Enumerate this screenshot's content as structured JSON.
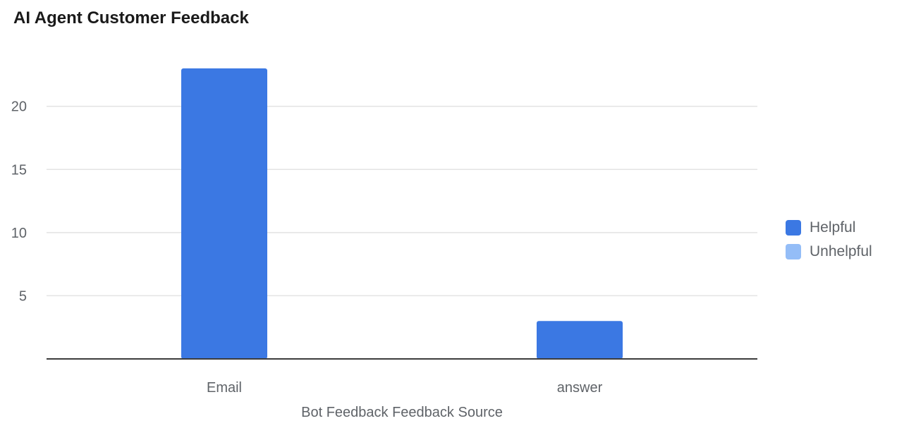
{
  "chart_data": {
    "type": "bar",
    "title": "AI Agent Customer Feedback",
    "xlabel": "Bot Feedback Feedback Source",
    "ylabel": "",
    "categories": [
      "Email",
      "answer"
    ],
    "series": [
      {
        "name": "Helpful",
        "values": [
          23,
          3
        ],
        "color": "#3b78e3"
      },
      {
        "name": "Unhelpful",
        "values": [
          0,
          0
        ],
        "color": "#94bdf7"
      }
    ],
    "ylim": [
      0,
      23
    ],
    "yticks": [
      5,
      10,
      15,
      20
    ],
    "grid": true,
    "legend_position": "right"
  }
}
